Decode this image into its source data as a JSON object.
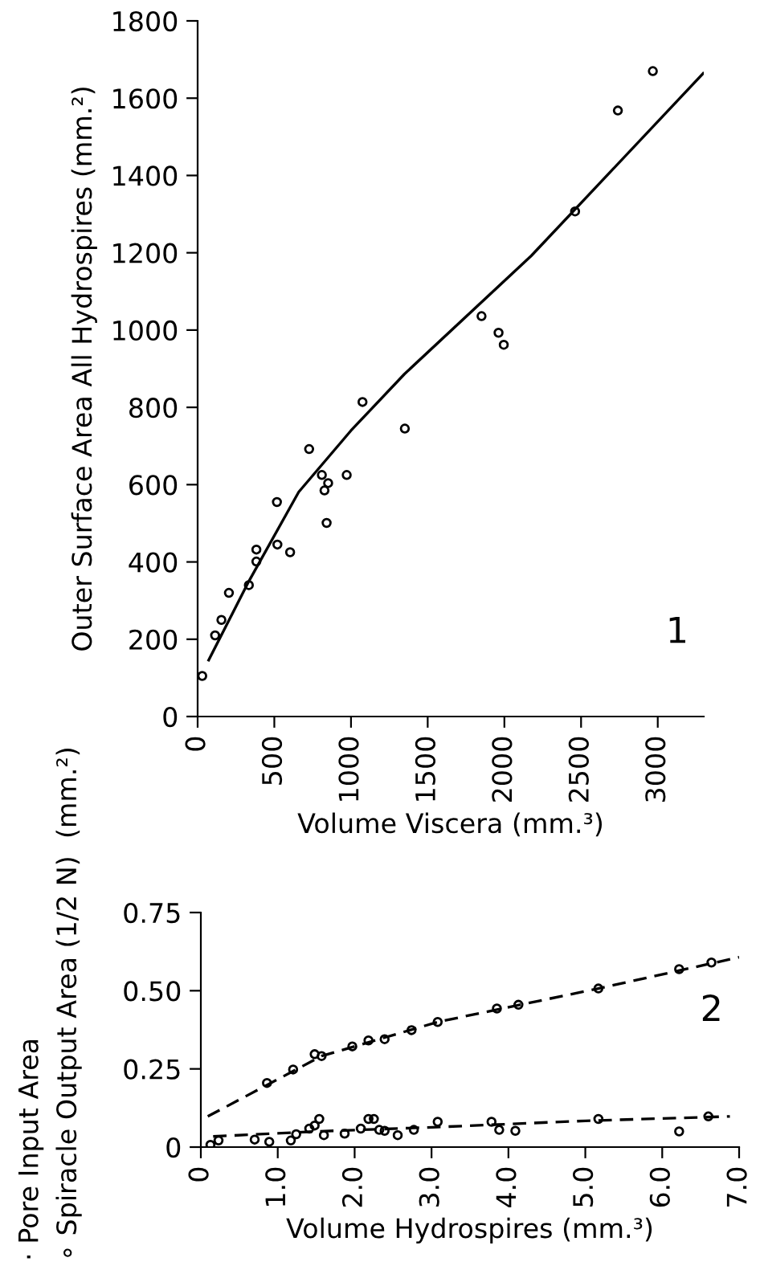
{
  "chart_data": [
    {
      "type": "scatter",
      "xlabel": "Volume Viscera (mm.³)",
      "ylabel": "Outer Surface Area All Hydrospires (mm.²)",
      "annotations": [
        "1"
      ],
      "xlim": [
        0,
        3300
      ],
      "xticks": [
        0,
        500,
        1000,
        1500,
        2000,
        2500,
        3000
      ],
      "ylim": [
        0,
        1800
      ],
      "yticks": [
        0,
        200,
        400,
        600,
        800,
        1000,
        1200,
        1400,
        1600,
        1800
      ],
      "grid": false,
      "series": [
        {
          "marker": "circle",
          "color": "#000000",
          "x": [
            30,
            114,
            155,
            204,
            334,
            383,
            383,
            517,
            520,
            603,
            727,
            810,
            827,
            851,
            841,
            972,
            1075,
            1351,
            1851,
            1962,
            1996,
            2461,
            2740,
            2968
          ],
          "values": [
            105,
            210,
            250,
            320,
            340,
            432,
            401,
            555,
            445,
            425,
            692,
            625,
            585,
            604,
            501,
            625,
            814,
            745,
            1036,
            993,
            962,
            1307,
            1568,
            1670
          ]
        },
        {
          "type": "line",
          "color": "#000000",
          "line_style": "solid",
          "x": [
            72,
            334,
            659,
            1000,
            1348,
            2175,
            2700,
            3296
          ],
          "values": [
            146,
            350,
            581,
            740,
            886,
            1192,
            1413,
            1664
          ]
        }
      ]
    },
    {
      "type": "scatter",
      "xlabel": "Volume Hydrospires (mm.³)",
      "ylabel": "· Pore Input Area\n∘ Spiracle Output Area (1/2 N)  (mm.²)",
      "annotations": [
        "2"
      ],
      "xlim": [
        0,
        7.0
      ],
      "xticks": [
        0,
        {
          "value": 1,
          "label": "1.0"
        },
        {
          "value": 2,
          "label": "2.0"
        },
        {
          "value": 3,
          "label": "3.0"
        },
        {
          "value": 4,
          "label": "4.0"
        },
        {
          "value": 5,
          "label": "5.0"
        },
        {
          "value": 6,
          "label": "6.0"
        },
        {
          "value": 7,
          "label": "7.0"
        }
      ],
      "ylim": [
        0,
        0.75
      ],
      "yticks": [
        0,
        0.25,
        {
          "value": 0.5,
          "label": "0.50"
        },
        0.75
      ],
      "grid": false,
      "series": [
        {
          "marker": "circle",
          "color": "#000000",
          "x": [
            0.86,
            1.2,
            1.48,
            1.57,
            1.97,
            2.18,
            2.39,
            2.74,
            3.08,
            3.85,
            4.13,
            5.17,
            6.22,
            6.64
          ],
          "values": [
            0.205,
            0.248,
            0.297,
            0.291,
            0.322,
            0.341,
            0.345,
            0.374,
            0.4,
            0.443,
            0.455,
            0.507,
            0.569,
            0.59
          ]
        },
        {
          "type": "line",
          "color": "#000000",
          "line_style": "dashed",
          "x": [
            0.09,
            1.57,
            3.08,
            5.17,
            7.0
          ],
          "values": [
            0.098,
            0.291,
            0.4,
            0.507,
            0.607
          ]
        },
        {
          "marker": "circle",
          "color": "#000000",
          "x": [
            0.125,
            0.23,
            0.7,
            0.89,
            1.17,
            1.24,
            1.41,
            1.48,
            1.54,
            1.6,
            1.87,
            2.08,
            2.18,
            2.25,
            2.32,
            2.39,
            2.56,
            2.77,
            3.08,
            3.78,
            3.88,
            4.09,
            5.17,
            6.22,
            6.6
          ],
          "values": [
            0.007,
            0.021,
            0.024,
            0.017,
            0.021,
            0.041,
            0.059,
            0.069,
            0.09,
            0.038,
            0.043,
            0.059,
            0.09,
            0.09,
            0.055,
            0.052,
            0.038,
            0.055,
            0.081,
            0.081,
            0.055,
            0.052,
            0.09,
            0.05,
            0.098
          ]
        },
        {
          "type": "line",
          "color": "#000000",
          "line_style": "dashed",
          "x": [
            0.16,
            1.5,
            3.08,
            5.0,
            6.88
          ],
          "values": [
            0.034,
            0.05,
            0.064,
            0.084,
            0.098
          ]
        }
      ]
    }
  ]
}
